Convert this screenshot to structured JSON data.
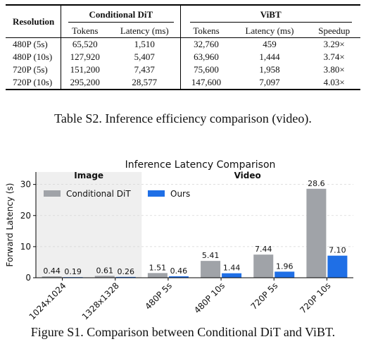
{
  "table": {
    "headers": {
      "resolution": "Resolution",
      "group1": "Conditional DiT",
      "group2": "ViBT",
      "tokens": "Tokens",
      "latency": "Latency (ms)",
      "speedup": "Speedup"
    },
    "rows": [
      {
        "res": "480P (5s)",
        "dit_tokens": "65,520",
        "dit_latency": "1,510",
        "vibt_tokens": "32,760",
        "vibt_latency": "459",
        "speedup": "3.29×"
      },
      {
        "res": "480P (10s)",
        "dit_tokens": "127,920",
        "dit_latency": "5,407",
        "vibt_tokens": "63,960",
        "vibt_latency": "1,444",
        "speedup": "3.74×"
      },
      {
        "res": "720P (5s)",
        "dit_tokens": "151,200",
        "dit_latency": "7,437",
        "vibt_tokens": "75,600",
        "vibt_latency": "1,958",
        "speedup": "3.80×"
      },
      {
        "res": "720P (10s)",
        "dit_tokens": "295,200",
        "dit_latency": "28,577",
        "vibt_tokens": "147,600",
        "vibt_latency": "7,097",
        "speedup": "4.03×"
      }
    ],
    "caption": "Table S2. Inference efficiency comparison (video)."
  },
  "chart_data": {
    "type": "bar",
    "title": "Inference Latency Comparison",
    "ylabel": "Forward Latency (s)",
    "xlabel": "",
    "ylim": [
      0,
      34
    ],
    "yticks": [
      0,
      10,
      20,
      30
    ],
    "grid": true,
    "legend_position": "upper-left",
    "categories": [
      "1024x1024",
      "1328x1328",
      "480P 5s",
      "480P 10s",
      "720P 5s",
      "720P 10s"
    ],
    "series": [
      {
        "name": "Conditional DiT",
        "color": "#a0a3a8",
        "values": [
          0.44,
          0.61,
          1.51,
          5.41,
          7.44,
          28.6
        ],
        "labels": [
          "0.44",
          "0.61",
          "1.51",
          "5.41",
          "7.44",
          "28.6"
        ]
      },
      {
        "name": "Ours",
        "color": "#1f6fe6",
        "values": [
          0.19,
          0.26,
          0.46,
          1.44,
          1.96,
          7.1
        ],
        "labels": [
          "0.19",
          "0.26",
          "0.46",
          "1.44",
          "1.96",
          "7.10"
        ]
      }
    ],
    "regions": [
      {
        "label": "Image",
        "categories": [
          0,
          1
        ],
        "shaded": true
      },
      {
        "label": "Video",
        "categories": [
          2,
          3,
          4,
          5
        ],
        "shaded": false
      }
    ]
  },
  "figure_caption": "Figure S1. Comparison between Conditional DiT and ViBT."
}
